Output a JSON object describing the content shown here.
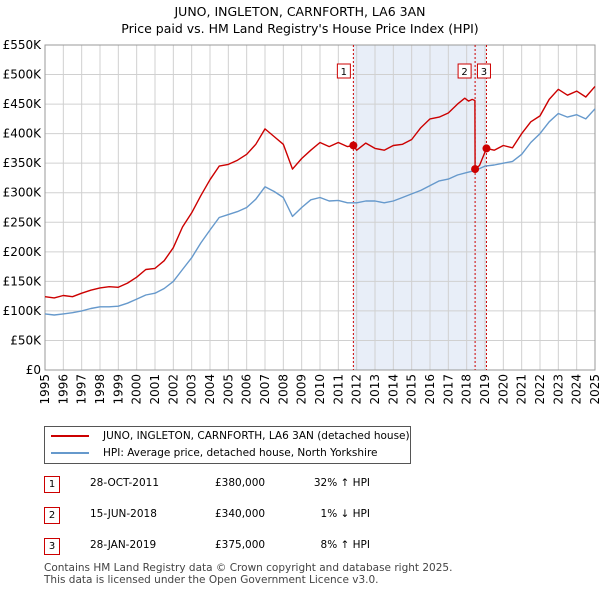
{
  "title_line1": "JUNO, INGLETON, CARNFORTH, LA6 3AN",
  "title_line2": "Price paid vs. HM Land Registry's House Price Index (HPI)",
  "chart_data": {
    "type": "line",
    "x_range": [
      1995,
      2025
    ],
    "y_range": [
      0,
      550000
    ],
    "y_ticks": [
      {
        "value": 0,
        "label": "£0"
      },
      {
        "value": 50000,
        "label": "£50K"
      },
      {
        "value": 100000,
        "label": "£100K"
      },
      {
        "value": 150000,
        "label": "£150K"
      },
      {
        "value": 200000,
        "label": "£200K"
      },
      {
        "value": 250000,
        "label": "£250K"
      },
      {
        "value": 300000,
        "label": "£300K"
      },
      {
        "value": 350000,
        "label": "£350K"
      },
      {
        "value": 400000,
        "label": "£400K"
      },
      {
        "value": 450000,
        "label": "£450K"
      },
      {
        "value": 500000,
        "label": "£500K"
      },
      {
        "value": 550000,
        "label": "£550K"
      }
    ],
    "x_ticks": [
      "1995",
      "1996",
      "1997",
      "1998",
      "1999",
      "2000",
      "2001",
      "2002",
      "2003",
      "2004",
      "2005",
      "2006",
      "2007",
      "2008",
      "2009",
      "2010",
      "2011",
      "2012",
      "2013",
      "2014",
      "2015",
      "2016",
      "2017",
      "2018",
      "2019",
      "2020",
      "2021",
      "2022",
      "2023",
      "2024",
      "2025"
    ],
    "series": [
      {
        "name": "JUNO, INGLETON, CARNFORTH, LA6 3AN (detached house)",
        "color": "#cc0000",
        "x": [
          1995.0,
          1995.5,
          1996.0,
          1996.5,
          1997.0,
          1997.5,
          1998.0,
          1998.5,
          1999.0,
          1999.5,
          2000.0,
          2000.5,
          2001.0,
          2001.5,
          2002.0,
          2002.5,
          2003.0,
          2003.5,
          2004.0,
          2004.5,
          2005.0,
          2005.5,
          2006.0,
          2006.5,
          2007.0,
          2007.5,
          2008.0,
          2008.5,
          2009.0,
          2009.5,
          2010.0,
          2010.5,
          2011.0,
          2011.5,
          2011.82,
          2012.0,
          2012.5,
          2013.0,
          2013.5,
          2014.0,
          2014.5,
          2015.0,
          2015.5,
          2016.0,
          2016.5,
          2017.0,
          2017.5,
          2017.9,
          2018.1,
          2018.3,
          2018.45,
          2018.46,
          2018.7,
          2019.08,
          2019.5,
          2020.0,
          2020.5,
          2021.0,
          2021.5,
          2022.0,
          2022.5,
          2023.0,
          2023.5,
          2024.0,
          2024.5,
          2025.0
        ],
        "values": [
          124000,
          122000,
          126000,
          124000,
          130000,
          135000,
          139000,
          141000,
          140000,
          147000,
          157000,
          170000,
          172000,
          185000,
          207000,
          242000,
          266000,
          295000,
          322000,
          345000,
          348000,
          355000,
          365000,
          382000,
          408000,
          395000,
          382000,
          340000,
          358000,
          372000,
          385000,
          378000,
          385000,
          378000,
          380000,
          372000,
          384000,
          375000,
          372000,
          380000,
          382000,
          390000,
          410000,
          425000,
          428000,
          435000,
          450000,
          460000,
          455000,
          458000,
          456000,
          340000,
          346000,
          375000,
          372000,
          380000,
          376000,
          400000,
          420000,
          430000,
          458000,
          475000,
          465000,
          472000,
          462000,
          480000
        ]
      },
      {
        "name": "HPI: Average price, detached house, North Yorkshire",
        "color": "#6699cc",
        "x": [
          1995.0,
          1995.5,
          1996.0,
          1996.5,
          1997.0,
          1997.5,
          1998.0,
          1998.5,
          1999.0,
          1999.5,
          2000.0,
          2000.5,
          2001.0,
          2001.5,
          2002.0,
          2002.5,
          2003.0,
          2003.5,
          2004.0,
          2004.5,
          2005.0,
          2005.5,
          2006.0,
          2006.5,
          2007.0,
          2007.5,
          2008.0,
          2008.5,
          2009.0,
          2009.5,
          2010.0,
          2010.5,
          2011.0,
          2011.5,
          2012.0,
          2012.5,
          2013.0,
          2013.5,
          2014.0,
          2014.5,
          2015.0,
          2015.5,
          2016.0,
          2016.5,
          2017.0,
          2017.5,
          2018.0,
          2018.5,
          2019.0,
          2019.5,
          2020.0,
          2020.5,
          2021.0,
          2021.5,
          2022.0,
          2022.5,
          2023.0,
          2023.5,
          2024.0,
          2024.5,
          2025.0
        ],
        "values": [
          95000,
          93000,
          95000,
          97000,
          100000,
          104000,
          107000,
          107000,
          108000,
          113000,
          120000,
          127000,
          130000,
          138000,
          150000,
          170000,
          190000,
          215000,
          237000,
          258000,
          263000,
          268000,
          275000,
          289000,
          310000,
          302000,
          292000,
          260000,
          275000,
          288000,
          292000,
          286000,
          287000,
          283000,
          283000,
          286000,
          286000,
          283000,
          286000,
          292000,
          298000,
          304000,
          312000,
          320000,
          323000,
          330000,
          334000,
          338000,
          345000,
          347000,
          350000,
          353000,
          365000,
          385000,
          400000,
          420000,
          434000,
          428000,
          432000,
          425000,
          442000
        ]
      }
    ],
    "sales": [
      {
        "label": "1",
        "date": "28-OCT-2011",
        "x": 2011.82,
        "price": 380000,
        "price_text": "£380,000",
        "hpi": "32% ↑ HPI"
      },
      {
        "label": "2",
        "date": "15-JUN-2018",
        "x": 2018.46,
        "price": 340000,
        "price_text": "£340,000",
        "hpi": "1% ↓ HPI"
      },
      {
        "label": "3",
        "date": "28-JAN-2019",
        "x": 2019.08,
        "price": 375000,
        "price_text": "£375,000",
        "hpi": "8% ↑ HPI"
      }
    ],
    "shaded_periods": [
      [
        2011.82,
        2019.08
      ]
    ],
    "colors": {
      "shade": "#e8eef8",
      "grid": "#d0d0d0",
      "vline": "#cc0000",
      "price": "#cc0000",
      "hpi": "#6699cc"
    }
  },
  "legend": {
    "price_label": "JUNO, INGLETON, CARNFORTH, LA6 3AN (detached house)",
    "hpi_label": "HPI: Average price, detached house, North Yorkshire"
  },
  "footer": {
    "line1": "Contains HM Land Registry data © Crown copyright and database right 2025.",
    "line2": "This data is licensed under the Open Government Licence v3.0."
  }
}
